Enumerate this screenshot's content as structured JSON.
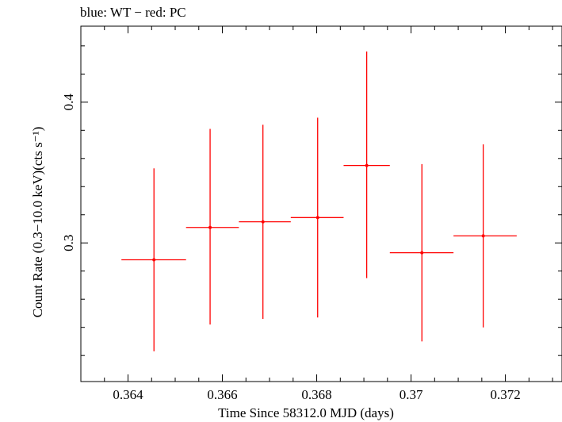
{
  "header": {
    "title": "blue: WT − red: PC"
  },
  "chart_data": {
    "type": "scatter",
    "title": "blue: WT − red: PC",
    "xlabel": "Time Since 58312.0 MJD (days)",
    "ylabel": "Count Rate (0.3−10.0 keV)(cts s⁻¹)",
    "xlim": [
      0.363,
      0.3732
    ],
    "ylim": [
      0.2015,
      0.454
    ],
    "xticks": [
      {
        "value": 0.364,
        "label": "0.364"
      },
      {
        "value": 0.366,
        "label": "0.366"
      },
      {
        "value": 0.368,
        "label": "0.368"
      },
      {
        "value": 0.37,
        "label": "0.37"
      },
      {
        "value": 0.372,
        "label": "0.372"
      }
    ],
    "yticks": [
      {
        "value": 0.3,
        "label": "0.3"
      },
      {
        "value": 0.4,
        "label": "0.4"
      }
    ],
    "grid": false,
    "series": [
      {
        "name": "PC",
        "color": "#ff0000",
        "points": [
          {
            "x": 0.36455,
            "y": 0.288,
            "xlo": 0.36386,
            "xhi": 0.36523,
            "ylo": 0.223,
            "yhi": 0.353
          },
          {
            "x": 0.36574,
            "y": 0.311,
            "xlo": 0.36523,
            "xhi": 0.36635,
            "ylo": 0.242,
            "yhi": 0.381
          },
          {
            "x": 0.36686,
            "y": 0.315,
            "xlo": 0.36635,
            "xhi": 0.36745,
            "ylo": 0.246,
            "yhi": 0.384
          },
          {
            "x": 0.36802,
            "y": 0.318,
            "xlo": 0.36745,
            "xhi": 0.36857,
            "ylo": 0.247,
            "yhi": 0.389
          },
          {
            "x": 0.36906,
            "y": 0.355,
            "xlo": 0.36857,
            "xhi": 0.36955,
            "ylo": 0.275,
            "yhi": 0.436
          },
          {
            "x": 0.37023,
            "y": 0.293,
            "xlo": 0.36955,
            "xhi": 0.3709,
            "ylo": 0.23,
            "yhi": 0.356
          },
          {
            "x": 0.37153,
            "y": 0.305,
            "xlo": 0.3709,
            "xhi": 0.37224,
            "ylo": 0.24,
            "yhi": 0.37
          }
        ]
      }
    ]
  }
}
